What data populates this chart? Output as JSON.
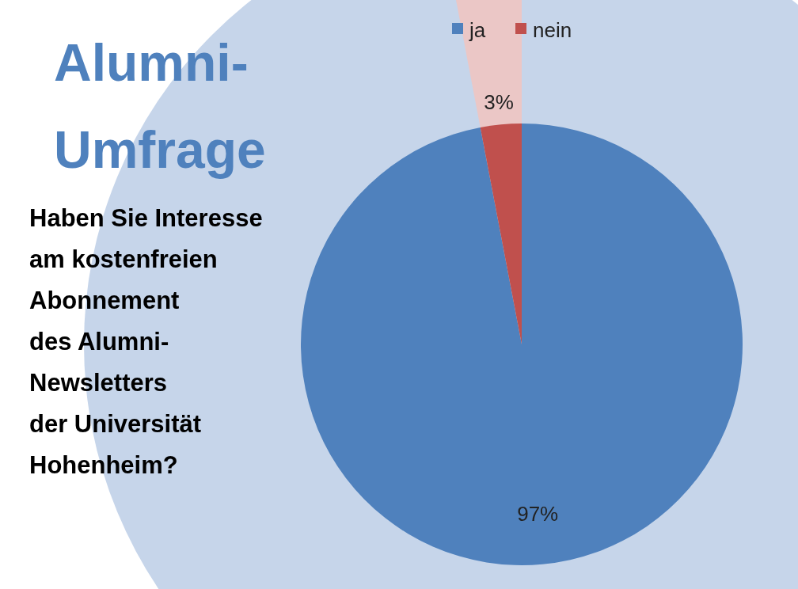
{
  "chart_data": {
    "type": "pie",
    "title": "Alumni-Umfrage",
    "subtitle": "Haben Sie Interesse\nam kostenfreien\nAbonnement\ndes Alumni-\nNewsletters\nder Universität\nHohenheim?",
    "categories": [
      "ja",
      "nein"
    ],
    "values": [
      97,
      3
    ],
    "colors": [
      "#4f81bd",
      "#c0504d"
    ],
    "value_labels": [
      "97%",
      "3%"
    ],
    "legend": "top"
  }
}
